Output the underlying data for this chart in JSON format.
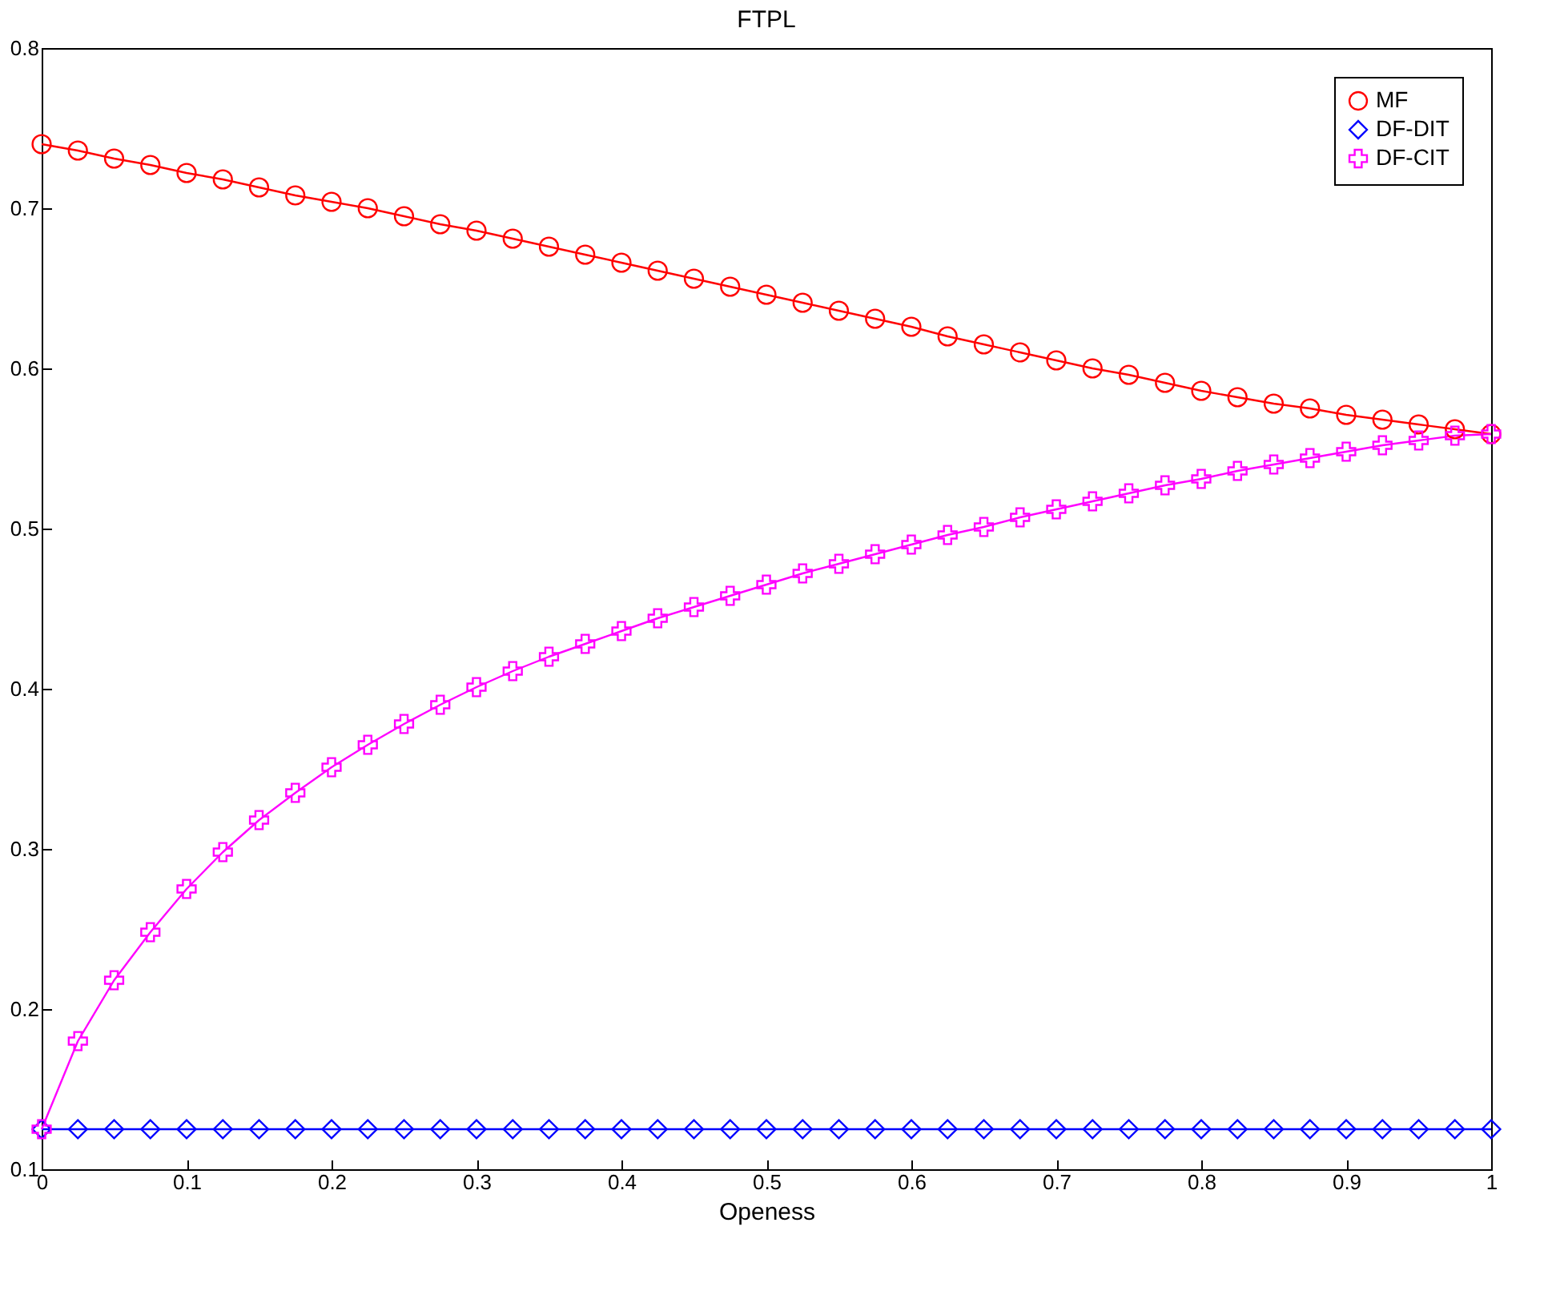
{
  "chart_data": {
    "type": "line",
    "title": "FTPL",
    "xlabel": "Openess",
    "x": [
      0,
      0.025,
      0.05,
      0.075,
      0.1,
      0.125,
      0.15,
      0.175,
      0.2,
      0.225,
      0.25,
      0.275,
      0.3,
      0.325,
      0.35,
      0.375,
      0.4,
      0.425,
      0.45,
      0.475,
      0.5,
      0.525,
      0.55,
      0.575,
      0.6,
      0.625,
      0.65,
      0.675,
      0.7,
      0.725,
      0.75,
      0.775,
      0.8,
      0.825,
      0.85,
      0.875,
      0.9,
      0.925,
      0.95,
      0.975,
      1
    ],
    "series": [
      {
        "name": "MF",
        "color": "#ff0000",
        "marker": "circle",
        "values": [
          0.74,
          0.736,
          0.731,
          0.727,
          0.722,
          0.718,
          0.713,
          0.708,
          0.704,
          0.7,
          0.695,
          0.69,
          0.686,
          0.681,
          0.676,
          0.671,
          0.666,
          0.661,
          0.656,
          0.651,
          0.646,
          0.641,
          0.636,
          0.631,
          0.626,
          0.62,
          0.615,
          0.61,
          0.605,
          0.6,
          0.596,
          0.591,
          0.586,
          0.582,
          0.578,
          0.575,
          0.571,
          0.568,
          0.565,
          0.562,
          0.559
        ]
      },
      {
        "name": "DF-DIT",
        "color": "#0000ff",
        "marker": "diamond",
        "values": [
          0.125,
          0.125,
          0.125,
          0.125,
          0.125,
          0.125,
          0.125,
          0.125,
          0.125,
          0.125,
          0.125,
          0.125,
          0.125,
          0.125,
          0.125,
          0.125,
          0.125,
          0.125,
          0.125,
          0.125,
          0.125,
          0.125,
          0.125,
          0.125,
          0.125,
          0.125,
          0.125,
          0.125,
          0.125,
          0.125,
          0.125,
          0.125,
          0.125,
          0.125,
          0.125,
          0.125,
          0.125,
          0.125,
          0.125,
          0.125,
          0.125
        ]
      },
      {
        "name": "DF-CIT",
        "color": "#ff00ff",
        "marker": "cross",
        "values": [
          0.125,
          0.18,
          0.218,
          0.248,
          0.275,
          0.298,
          0.318,
          0.335,
          0.351,
          0.365,
          0.378,
          0.39,
          0.401,
          0.411,
          0.42,
          0.428,
          0.436,
          0.444,
          0.451,
          0.458,
          0.465,
          0.472,
          0.478,
          0.484,
          0.49,
          0.496,
          0.501,
          0.507,
          0.512,
          0.517,
          0.522,
          0.527,
          0.531,
          0.536,
          0.54,
          0.544,
          0.548,
          0.552,
          0.555,
          0.558,
          0.559
        ]
      }
    ],
    "xlim": [
      0,
      1
    ],
    "xticks": [
      0,
      0.1,
      0.2,
      0.3,
      0.4,
      0.5,
      0.6,
      0.7,
      0.8,
      0.9,
      1
    ],
    "ylim": [
      0.1,
      0.8
    ],
    "yticks": [
      0.1,
      0.2,
      0.3,
      0.4,
      0.5,
      0.6,
      0.7,
      0.8
    ],
    "grid": false,
    "legend": "top right",
    "line_style": "solid"
  }
}
